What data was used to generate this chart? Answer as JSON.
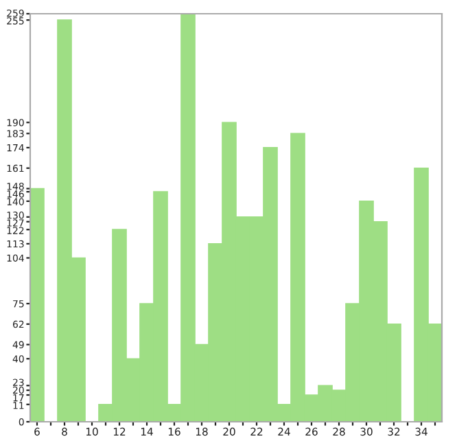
{
  "chart_data": {
    "type": "bar",
    "categories": [
      "6",
      null,
      "8",
      null,
      "10",
      null,
      "12",
      null,
      "14",
      null,
      "16",
      null,
      "18",
      null,
      "20",
      null,
      "22",
      null,
      "24",
      null,
      "26",
      null,
      "28",
      null,
      "30",
      null,
      "32",
      null,
      "34",
      null
    ],
    "values": [
      148,
      0,
      255,
      104,
      0,
      11,
      122,
      40,
      75,
      146,
      11,
      259,
      49,
      113,
      190,
      130,
      130,
      174,
      11,
      183,
      17,
      23,
      20,
      75,
      140,
      127,
      62,
      0,
      161,
      62
    ],
    "color": "#9ede84",
    "ylim": [
      0,
      259
    ],
    "yticks": [
      0,
      11,
      17,
      20,
      23,
      40,
      49,
      62,
      75,
      104,
      113,
      122,
      127,
      130,
      140,
      146,
      148,
      161,
      174,
      183,
      190,
      255,
      259
    ],
    "grid": false
  }
}
